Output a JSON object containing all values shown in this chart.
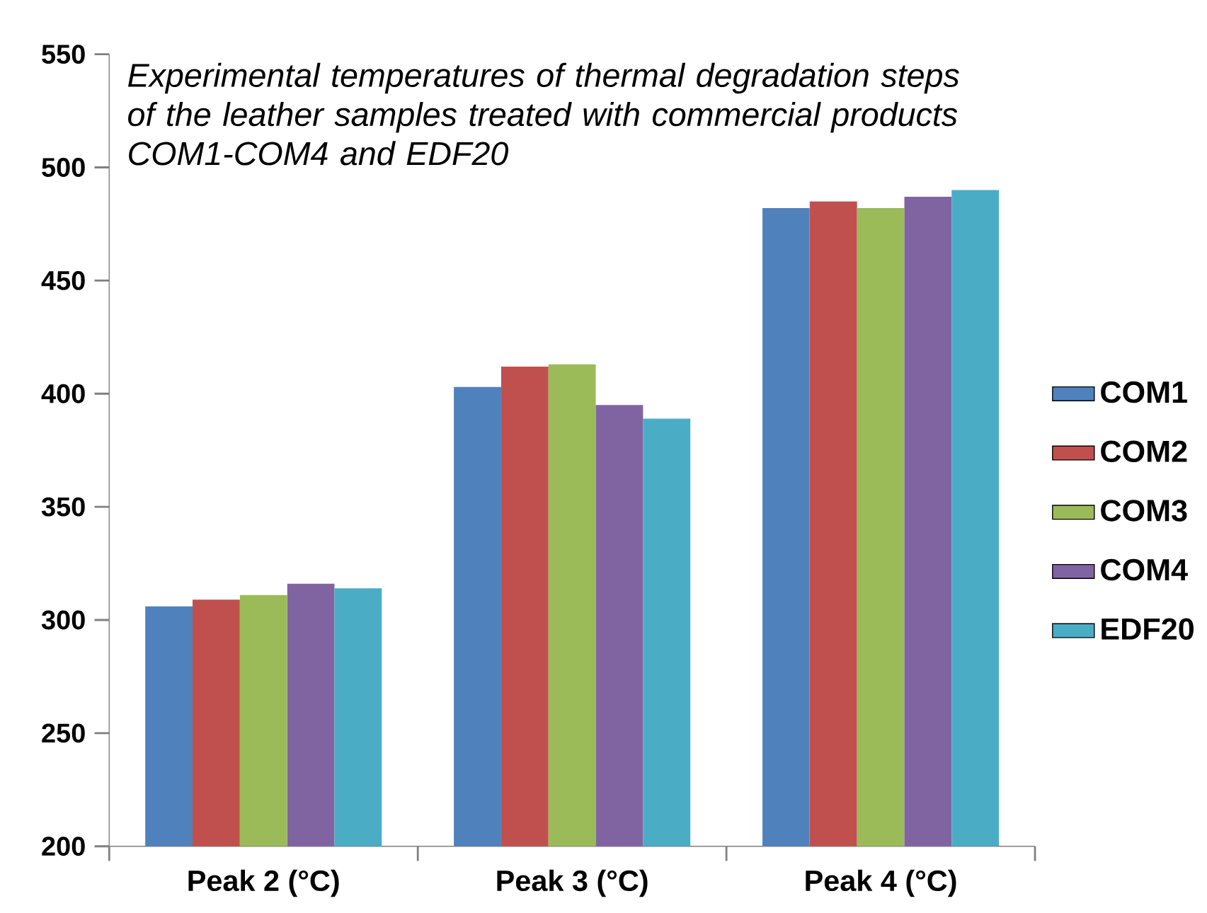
{
  "chart_data": {
    "type": "bar",
    "title": "*Experimental temperatures of thermal degradation steps of the leather samples treated with commercial products COM1-COM4 and  EDF20*",
    "categories": [
      "Peak 2 (°C)",
      "Peak 3 (°C)",
      "Peak 4 (°C)"
    ],
    "series": [
      {
        "name": "COM1",
        "color": "#4f81bd",
        "values": [
          306,
          403,
          482
        ]
      },
      {
        "name": "COM2",
        "color": "#c0504d",
        "values": [
          309,
          412,
          485
        ]
      },
      {
        "name": "COM3",
        "color": "#9bbb59",
        "values": [
          311,
          413,
          482
        ]
      },
      {
        "name": "COM4",
        "color": "#8064a2",
        "values": [
          316,
          395,
          487
        ]
      },
      {
        "name": "EDF20",
        "color": "#4bacc6",
        "values": [
          314,
          389,
          490
        ]
      }
    ],
    "ylim": [
      200,
      550
    ],
    "yticks": [
      200,
      250,
      300,
      350,
      400,
      450,
      500,
      550
    ],
    "legend": "right",
    "grid": false
  }
}
